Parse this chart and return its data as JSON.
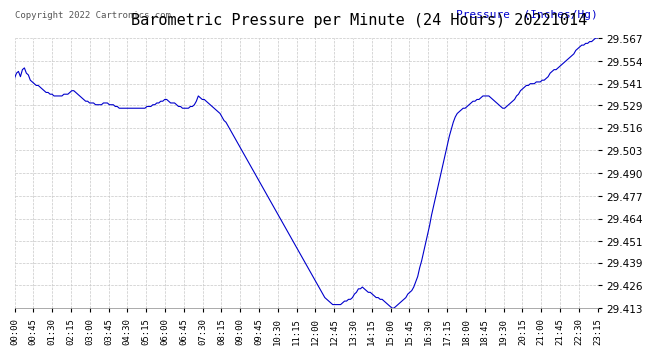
{
  "title": "Barometric Pressure per Minute (24 Hours) 20221014",
  "copyright_text": "Copyright 2022 Cartronics.com",
  "legend_text": "Pressure  (Inches/Hg)",
  "line_color": "#0000cc",
  "background_color": "#ffffff",
  "grid_color": "#c8c8c8",
  "text_color": "#000000",
  "title_color": "#000000",
  "ylim": [
    29.413,
    29.567
  ],
  "yticks": [
    29.413,
    29.426,
    29.439,
    29.451,
    29.464,
    29.477,
    29.49,
    29.503,
    29.516,
    29.529,
    29.541,
    29.554,
    29.567
  ],
  "xtick_labels": [
    "00:00",
    "00:45",
    "01:30",
    "02:15",
    "03:00",
    "03:45",
    "04:30",
    "05:15",
    "06:00",
    "06:45",
    "07:30",
    "08:15",
    "09:00",
    "09:45",
    "10:30",
    "11:15",
    "12:00",
    "12:45",
    "13:30",
    "14:15",
    "15:00",
    "15:45",
    "16:30",
    "17:15",
    "18:00",
    "18:45",
    "19:30",
    "20:15",
    "21:00",
    "21:45",
    "22:30",
    "23:15"
  ],
  "pressure_data": [
    29.544,
    29.547,
    29.548,
    29.545,
    29.549,
    29.55,
    29.547,
    29.546,
    29.543,
    29.542,
    29.541,
    29.54,
    29.54,
    29.539,
    29.538,
    29.537,
    29.536,
    29.536,
    29.535,
    29.535,
    29.534,
    29.534,
    29.534,
    29.534,
    29.534,
    29.535,
    29.535,
    29.535,
    29.536,
    29.537,
    29.537,
    29.536,
    29.535,
    29.534,
    29.533,
    29.532,
    29.531,
    29.531,
    29.53,
    29.53,
    29.53,
    29.529,
    29.529,
    29.529,
    29.529,
    29.53,
    29.53,
    29.53,
    29.529,
    29.529,
    29.529,
    29.528,
    29.528,
    29.527,
    29.527,
    29.527,
    29.527,
    29.527,
    29.527,
    29.527,
    29.527,
    29.527,
    29.527,
    29.527,
    29.527,
    29.527,
    29.527,
    29.528,
    29.528,
    29.528,
    29.529,
    29.529,
    29.53,
    29.53,
    29.531,
    29.531,
    29.532,
    29.532,
    29.531,
    29.53,
    29.53,
    29.53,
    29.529,
    29.528,
    29.528,
    29.527,
    29.527,
    29.527,
    29.527,
    29.528,
    29.528,
    29.529,
    29.531,
    29.534,
    29.533,
    29.532,
    29.532,
    29.531,
    29.53,
    29.529,
    29.528,
    29.527,
    29.526,
    29.525,
    29.524,
    29.522,
    29.52,
    29.519,
    29.517,
    29.515,
    29.513,
    29.511,
    29.509,
    29.507,
    29.505,
    29.503,
    29.501,
    29.499,
    29.497,
    29.495,
    29.493,
    29.491,
    29.489,
    29.487,
    29.485,
    29.483,
    29.481,
    29.479,
    29.477,
    29.475,
    29.473,
    29.471,
    29.469,
    29.467,
    29.465,
    29.463,
    29.461,
    29.459,
    29.457,
    29.455,
    29.453,
    29.451,
    29.449,
    29.447,
    29.445,
    29.443,
    29.441,
    29.439,
    29.437,
    29.435,
    29.433,
    29.431,
    29.429,
    29.427,
    29.425,
    29.423,
    29.421,
    29.419,
    29.418,
    29.417,
    29.416,
    29.415,
    29.415,
    29.415,
    29.415,
    29.415,
    29.416,
    29.417,
    29.417,
    29.418,
    29.418,
    29.419,
    29.421,
    29.422,
    29.424,
    29.424,
    29.425,
    29.424,
    29.423,
    29.422,
    29.422,
    29.421,
    29.42,
    29.419,
    29.419,
    29.418,
    29.418,
    29.417,
    29.416,
    29.415,
    29.414,
    29.413,
    29.413,
    29.414,
    29.415,
    29.416,
    29.417,
    29.418,
    29.419,
    29.421,
    29.422,
    29.423,
    29.425,
    29.428,
    29.431,
    29.436,
    29.44,
    29.445,
    29.45,
    29.455,
    29.46,
    29.466,
    29.471,
    29.476,
    29.481,
    29.486,
    29.491,
    29.496,
    29.501,
    29.506,
    29.511,
    29.515,
    29.519,
    29.522,
    29.524,
    29.525,
    29.526,
    29.527,
    29.527,
    29.528,
    29.529,
    29.53,
    29.531,
    29.531,
    29.532,
    29.532,
    29.533,
    29.534,
    29.534,
    29.534,
    29.534,
    29.533,
    29.532,
    29.531,
    29.53,
    29.529,
    29.528,
    29.527,
    29.527,
    29.528,
    29.529,
    29.53,
    29.531,
    29.532,
    29.534,
    29.535,
    29.537,
    29.538,
    29.539,
    29.54,
    29.54,
    29.541,
    29.541,
    29.541,
    29.542,
    29.542,
    29.542,
    29.543,
    29.543,
    29.544,
    29.545,
    29.547,
    29.548,
    29.549,
    29.549,
    29.55,
    29.551,
    29.552,
    29.553,
    29.554,
    29.555,
    29.556,
    29.557,
    29.558,
    29.56,
    29.561,
    29.562,
    29.563,
    29.563,
    29.564,
    29.564,
    29.565,
    29.565,
    29.566,
    29.567,
    29.567
  ]
}
